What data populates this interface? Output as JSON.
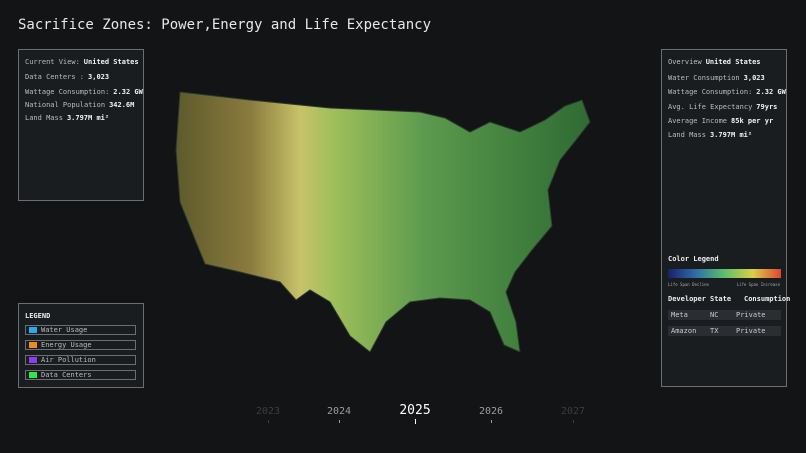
{
  "title": "Sacrifice Zones: Power,Energy and Life Expectancy",
  "current_view": {
    "rows": [
      {
        "label": "Current View:",
        "value": "United States"
      },
      {
        "label": "Data Centers :",
        "value": "3,023"
      },
      {
        "label": "Wattage Consumption:",
        "value": "2.32 GW"
      },
      {
        "label": "National Population",
        "value": "342.6M"
      },
      {
        "label": "Land Mass",
        "value": "3.797M mi²"
      }
    ]
  },
  "legend": {
    "title": "LEGEND",
    "items": [
      {
        "label": "Water Usage",
        "color": "#2aa8f0"
      },
      {
        "label": "Energy Usage",
        "color": "#f08a1c"
      },
      {
        "label": "Air Pollution",
        "color": "#8a3cf0"
      },
      {
        "label": "Data Centers",
        "color": "#2ee84a"
      }
    ]
  },
  "overview": {
    "rows": [
      {
        "label": "Overview",
        "value": "United States"
      },
      {
        "label": "Water Consumption",
        "value": "3,023"
      },
      {
        "label": "Wattage Consumption:",
        "value": "2.32 GW"
      },
      {
        "label": "Avg. Life Expectancy",
        "value": "79yrs"
      },
      {
        "label": "Average Income",
        "value": "85k per yr"
      },
      {
        "label": "Land Mass",
        "value": "3.797M mi²"
      }
    ],
    "color_legend": {
      "title": "Color Legend",
      "low": "Life Span Decline",
      "high": "Life Span Increase"
    },
    "table": {
      "header": [
        "Developer",
        "State",
        "Consumption"
      ],
      "rows": [
        [
          "Meta",
          "NC",
          "Private"
        ],
        [
          "Amazon",
          "TX",
          "Private"
        ]
      ]
    }
  },
  "timeline": {
    "years": [
      "2023",
      "2024",
      "2025",
      "2026",
      "2027"
    ],
    "selected": 2
  }
}
